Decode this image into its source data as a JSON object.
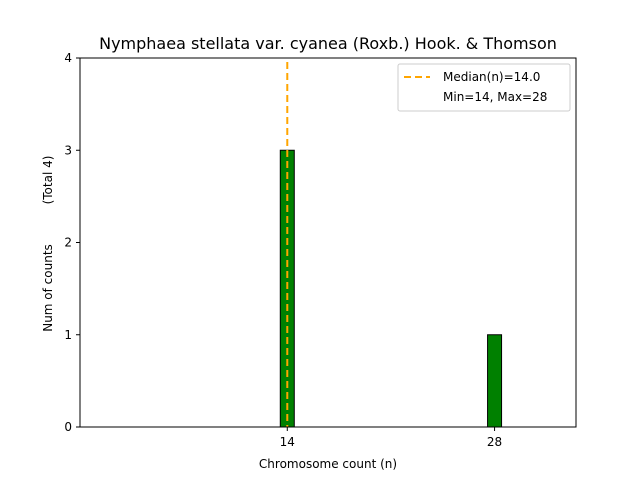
{
  "chart_data": {
    "type": "bar",
    "title": "Nymphaea stellata var. cyanea (Roxb.) Hook. & Thomson",
    "xlabel": "Chromosome count (n)",
    "ylabel": "Num of counts",
    "ylabel_note": "(Total 4)",
    "categories": [
      14,
      28
    ],
    "values": [
      3,
      1
    ],
    "xlim": [
      0,
      33.5
    ],
    "ylim": [
      0,
      4
    ],
    "yticks": [
      0,
      1,
      2,
      3,
      4
    ],
    "xticks": [
      14,
      28
    ],
    "grid": false,
    "bar_color": "#008000",
    "bar_edge_color": "#000000",
    "median": {
      "value": 14.0,
      "color": "#FFA500",
      "label": "Median(n)=14.0"
    },
    "legend": {
      "position": "top-right",
      "entries": [
        "Median(n)=14.0",
        "Min=14, Max=28"
      ]
    }
  }
}
